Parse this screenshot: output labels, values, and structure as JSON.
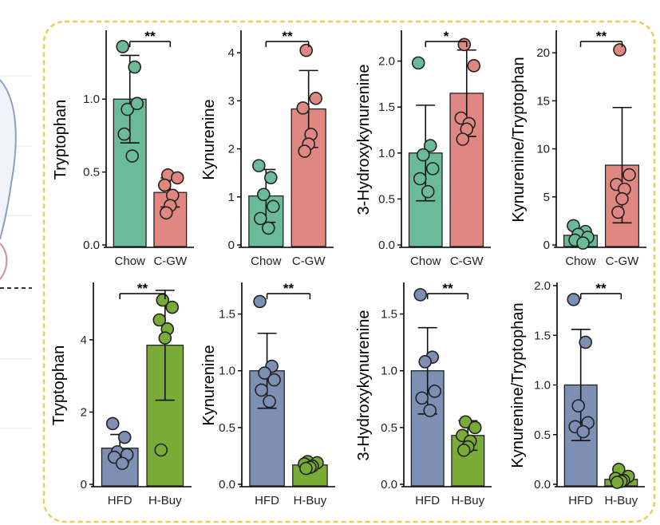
{
  "chart_data": [
    {
      "type": "bar",
      "ylabel": "Tryptophan",
      "categories": [
        "Chow",
        "C-GW"
      ],
      "values": [
        1.0,
        0.36
      ],
      "errors": [
        0.3,
        0.1
      ],
      "colors": [
        "#6cbb98",
        "#e08781"
      ],
      "points": [
        [
          1.36,
          1.22,
          0.93,
          0.97,
          0.76,
          0.61
        ],
        [
          0.48,
          0.46,
          0.41,
          0.34,
          0.27,
          0.22
        ]
      ],
      "ylim": [
        0,
        1.45
      ],
      "ticks": [
        0,
        0.5,
        1
      ],
      "tick_labels": [
        "0.0",
        "0.5",
        "1.0"
      ],
      "significance": "**"
    },
    {
      "type": "bar",
      "ylabel": "Kynurenine",
      "categories": [
        "Chow",
        "C-GW"
      ],
      "values": [
        1.02,
        2.83
      ],
      "errors": [
        0.55,
        0.8
      ],
      "colors": [
        "#6cbb98",
        "#e08781"
      ],
      "points": [
        [
          1.65,
          1.4,
          1.05,
          0.8,
          0.55,
          0.35
        ],
        [
          4.05,
          3.05,
          2.85,
          2.3,
          2.1,
          1.95
        ]
      ],
      "ylim": [
        0,
        4.4
      ],
      "ticks": [
        0,
        1,
        2,
        3,
        4
      ],
      "tick_labels": [
        "0",
        "1",
        "2",
        "3",
        "4"
      ],
      "significance": "**"
    },
    {
      "type": "bar",
      "ylabel": "3-Hydroxykynurenine",
      "categories": [
        "Chow",
        "C-GW"
      ],
      "values": [
        1.0,
        1.65
      ],
      "errors": [
        0.52,
        0.47
      ],
      "colors": [
        "#6cbb98",
        "#e08781"
      ],
      "points": [
        [
          1.98,
          1.08,
          0.98,
          0.83,
          0.72,
          0.58
        ],
        [
          2.18,
          1.95,
          1.38,
          1.32,
          1.26,
          1.15
        ]
      ],
      "ylim": [
        0,
        2.3
      ],
      "ticks": [
        0,
        0.5,
        1,
        1.5,
        2
      ],
      "tick_labels": [
        "0.0",
        "0.5",
        "1.0",
        "1.5",
        "2.0"
      ],
      "significance": "*"
    },
    {
      "type": "bar",
      "ylabel": "Kynurenine/Tryptophan",
      "categories": [
        "Chow",
        "C-GW"
      ],
      "values": [
        1.0,
        8.3
      ],
      "errors": [
        0.7,
        6.0
      ],
      "colors": [
        "#6cbb98",
        "#e08781"
      ],
      "points": [
        [
          2.0,
          1.4,
          1.1,
          0.8,
          0.5,
          0.2
        ],
        [
          20.3,
          7.3,
          6.3,
          5.8,
          4.8,
          3.4
        ]
      ],
      "ylim": [
        0,
        22
      ],
      "ticks": [
        0,
        5,
        10,
        15,
        20
      ],
      "tick_labels": [
        "0",
        "5",
        "10",
        "15",
        "20"
      ],
      "significance": "**"
    },
    {
      "type": "bar",
      "ylabel": "Tryptophan",
      "categories": [
        "HFD",
        "H-Buy"
      ],
      "values": [
        1.0,
        3.85
      ],
      "errors": [
        0.38,
        1.52
      ],
      "colors": [
        "#7d8fb3",
        "#7aab37"
      ],
      "points": [
        [
          1.68,
          1.3,
          0.9,
          0.82,
          0.75,
          0.58
        ],
        [
          5.1,
          4.9,
          4.55,
          4.3,
          4.05,
          0.95
        ]
      ],
      "ylim": [
        0,
        5.5
      ],
      "ticks": [
        0,
        2,
        4
      ],
      "tick_labels": [
        "0",
        "2",
        "4"
      ],
      "significance": "**"
    },
    {
      "type": "bar",
      "ylabel": "Kynurenine",
      "categories": [
        "HFD",
        "H-Buy"
      ],
      "values": [
        1.0,
        0.17
      ],
      "errors": [
        0.33,
        0.03
      ],
      "colors": [
        "#7d8fb3",
        "#7aab37"
      ],
      "points": [
        [
          1.61,
          1.04,
          0.98,
          0.92,
          0.83,
          0.73
        ],
        [
          0.2,
          0.19,
          0.18,
          0.16,
          0.15,
          0.14
        ]
      ],
      "ylim": [
        0,
        1.75
      ],
      "ticks": [
        0,
        0.5,
        1,
        1.5
      ],
      "tick_labels": [
        "0.0",
        "0.5",
        "1.0",
        "1.5"
      ],
      "significance": "**"
    },
    {
      "type": "bar",
      "ylabel": "3-Hydroxykynurenine",
      "categories": [
        "HFD",
        "H-Buy"
      ],
      "values": [
        1.0,
        0.43
      ],
      "errors": [
        0.38,
        0.13
      ],
      "colors": [
        "#7d8fb3",
        "#7aab37"
      ],
      "points": [
        [
          1.67,
          1.12,
          1.08,
          0.82,
          0.76,
          0.65
        ],
        [
          0.55,
          0.5,
          0.43,
          0.38,
          0.33,
          0.3
        ]
      ],
      "ylim": [
        0,
        1.75
      ],
      "ticks": [
        0,
        0.5,
        1,
        1.5
      ],
      "tick_labels": [
        "0.0",
        "0.5",
        "1.0",
        "1.5"
      ],
      "significance": "**"
    },
    {
      "type": "bar",
      "ylabel": "Kynurenine/Tryptophan",
      "categories": [
        "HFD",
        "H-Buy"
      ],
      "values": [
        1.0,
        0.05
      ],
      "errors": [
        0.56,
        0.03
      ],
      "colors": [
        "#7d8fb3",
        "#7aab37"
      ],
      "points": [
        [
          1.86,
          1.43,
          0.79,
          0.62,
          0.58,
          0.53
        ],
        [
          0.15,
          0.08,
          0.06,
          0.04,
          0.03,
          0.02
        ]
      ],
      "ylim": [
        0,
        2.0
      ],
      "ticks": [
        0,
        0.5,
        1,
        1.5,
        2
      ],
      "tick_labels": [
        "0.0",
        "0.5",
        "1.0",
        "1.5",
        "2.0"
      ],
      "significance": "**"
    }
  ],
  "colors": {
    "frame": "#e8cf5c",
    "left_line": "#8da0c4",
    "left_curve": "#d98e8e"
  }
}
